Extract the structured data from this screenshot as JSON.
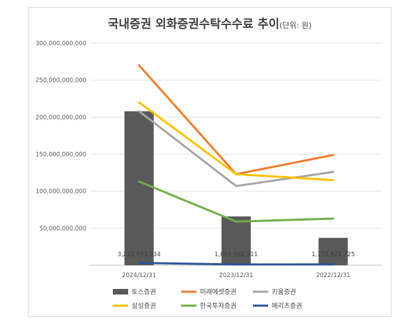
{
  "chart_data": {
    "type": "bar",
    "title_main": "국내증권 외화증권수탁수수료 추이",
    "title_unit": "(단위: 원)",
    "categories": [
      "2024/12/31",
      "2023/12/31",
      "2022/12/31"
    ],
    "ylim": [
      0,
      300000000000
    ],
    "yticks": [
      0,
      50000000000,
      100000000000,
      150000000000,
      200000000000,
      250000000000,
      300000000000
    ],
    "ytick_labels": [
      "",
      "50,000,000,000",
      "100,000,000,000",
      "150,000,000,000",
      "200,000,000,000",
      "250,000,000,000",
      "300,000,000,000"
    ],
    "grid": true,
    "legend_position": "bottom",
    "series": [
      {
        "name": "토스증권",
        "kind": "bar",
        "color": "#595959",
        "values": [
          208000000000,
          66000000000,
          37000000000
        ]
      },
      {
        "name": "미래에셋증권",
        "kind": "line",
        "color": "#ed7d31",
        "values": [
          270000000000,
          123000000000,
          149000000000
        ]
      },
      {
        "name": "키움증권",
        "kind": "line",
        "color": "#a5a5a5",
        "values": [
          208000000000,
          107000000000,
          126000000000
        ]
      },
      {
        "name": "삼성증권",
        "kind": "line",
        "color": "#ffc000",
        "values": [
          220000000000,
          123000000000,
          115000000000
        ]
      },
      {
        "name": "한국투자증권",
        "kind": "line",
        "color": "#70ad47",
        "values": [
          113000000000,
          59000000000,
          63000000000
        ]
      },
      {
        "name": "메리츠증권",
        "kind": "line",
        "color": "#2f5597",
        "values": [
          3218893934,
          1069061311,
          1170921725
        ]
      }
    ],
    "data_labels": [
      {
        "series": "메리츠증권",
        "index": 0,
        "text": "3,218,893,934"
      },
      {
        "series": "메리츠증권",
        "index": 1,
        "text": "1,069,061,311"
      },
      {
        "series": "메리츠증권",
        "index": 2,
        "text": "1,170,921,725"
      }
    ]
  }
}
